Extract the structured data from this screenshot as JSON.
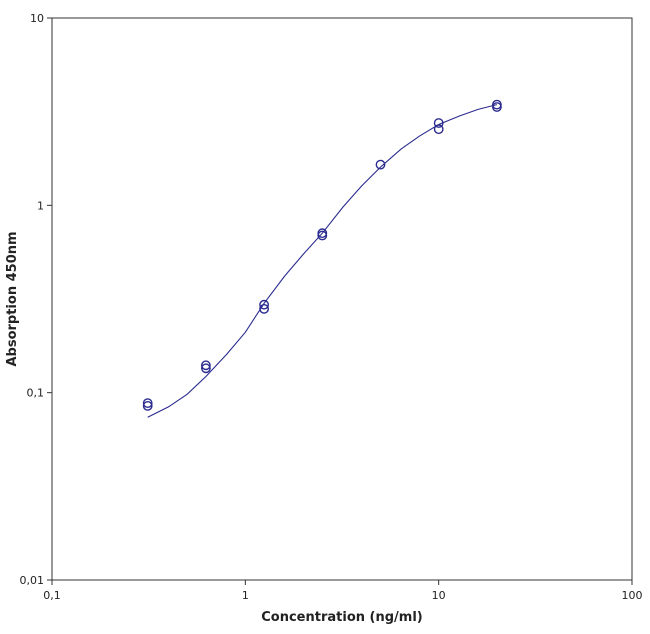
{
  "chart_data": {
    "type": "scatter",
    "title": "",
    "xlabel": "Concentration (ng/ml)",
    "ylabel": "Absorption 450nm",
    "xscale": "log",
    "yscale": "log",
    "xlim": [
      0.1,
      100
    ],
    "ylim": [
      0.01,
      10
    ],
    "x_ticks": [
      0.1,
      1,
      10,
      100
    ],
    "x_tick_labels": [
      "0,1",
      "1",
      "10",
      "100"
    ],
    "y_ticks": [
      0.01,
      0.1,
      1,
      10
    ],
    "y_tick_labels": [
      "0,01",
      "0,1",
      "1",
      "10"
    ],
    "grid": false,
    "legend": "none",
    "color": "#2b2b8f",
    "series": [
      {
        "kind": "points",
        "x": [
          0.3125,
          0.3125,
          0.625,
          0.625,
          1.25,
          1.25,
          2.5,
          2.5,
          5,
          10,
          10,
          20,
          20
        ],
        "y": [
          0.085,
          0.088,
          0.135,
          0.14,
          0.28,
          0.295,
          0.69,
          0.71,
          1.65,
          2.55,
          2.75,
          3.35,
          3.45
        ]
      },
      {
        "kind": "fit-curve",
        "x": [
          0.3125,
          0.4,
          0.5,
          0.625,
          0.8,
          1,
          1.25,
          1.6,
          2,
          2.5,
          3.2,
          4,
          5,
          6.4,
          8,
          10,
          12.8,
          16,
          20
        ],
        "y": [
          0.074,
          0.084,
          0.098,
          0.122,
          0.16,
          0.21,
          0.3,
          0.42,
          0.55,
          0.71,
          0.98,
          1.27,
          1.6,
          2.0,
          2.35,
          2.7,
          3.0,
          3.25,
          3.45
        ]
      }
    ]
  }
}
